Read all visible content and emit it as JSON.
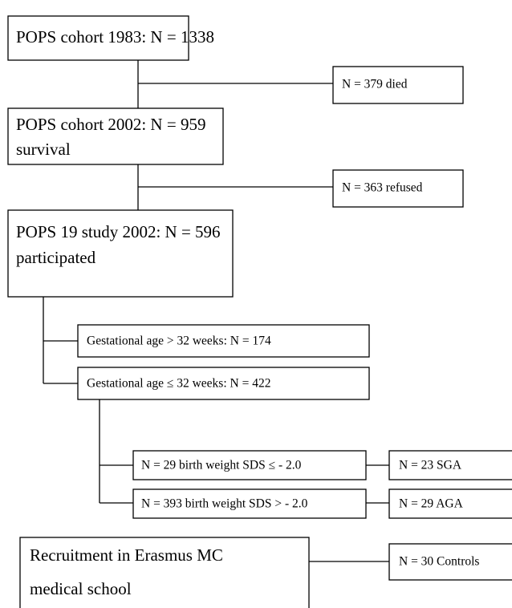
{
  "nodes": [
    {
      "lines": [
        "POPS cohort 1983: N = 1338"
      ]
    },
    {
      "lines": [
        "N = 379 died"
      ]
    },
    {
      "lines": [
        "POPS cohort 2002: N = 959",
        "survival"
      ]
    },
    {
      "lines": [
        "N = 363 refused"
      ]
    },
    {
      "lines": [
        "POPS 19 study 2002: N = 596",
        "participated"
      ]
    },
    {
      "lines": [
        "Gestational age > 32 weeks: N = 174"
      ]
    },
    {
      "lines": [
        "Gestational age ≤ 32 weeks: N = 422"
      ]
    },
    {
      "lines": [
        "N = 29 birth weight SDS ≤ - 2.0"
      ]
    },
    {
      "lines": [
        "N = 23 SGA"
      ]
    },
    {
      "lines": [
        "N = 393 birth weight SDS > - 2.0"
      ]
    },
    {
      "lines": [
        "N = 29 AGA"
      ]
    },
    {
      "lines": [
        "Recruitment in Erasmus MC",
        "medical school"
      ]
    },
    {
      "lines": [
        "N = 30 Controls"
      ]
    }
  ]
}
